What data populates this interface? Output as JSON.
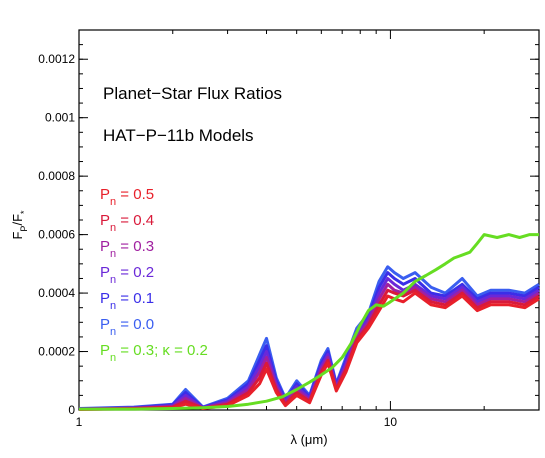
{
  "chart_data": {
    "type": "line",
    "xscale": "log",
    "xlim": [
      1,
      30
    ],
    "ylim": [
      0,
      0.0013
    ],
    "x_ticks": [
      {
        "value": 1,
        "label": "1"
      },
      {
        "value": 10,
        "label": "10"
      }
    ],
    "y_ticks": [
      {
        "value": 0,
        "label": "0"
      },
      {
        "value": 0.0002,
        "label": "0.0002"
      },
      {
        "value": 0.0004,
        "label": "0.0004"
      },
      {
        "value": 0.0006,
        "label": "0.0006"
      },
      {
        "value": 0.0008,
        "label": "0.0008"
      },
      {
        "value": 0.001,
        "label": "0.001"
      },
      {
        "value": 0.0012,
        "label": "0.0012"
      }
    ],
    "xlabel": "λ (μm)",
    "ylabel_main": "F",
    "ylabel_sub1": "P",
    "ylabel_mid": "/F",
    "ylabel_sub2": "*",
    "annotations": [
      "Planet−Star Flux Ratios",
      "HAT−P−11b Models"
    ],
    "legend": [
      {
        "main": "P",
        "sub": "n",
        "rest": " = 0.5",
        "color": "#e8202a"
      },
      {
        "main": "P",
        "sub": "n",
        "rest": " = 0.4",
        "color": "#d91a3a"
      },
      {
        "main": "P",
        "sub": "n",
        "rest": " = 0.3",
        "color": "#a020a0"
      },
      {
        "main": "P",
        "sub": "n",
        "rest": " = 0.2",
        "color": "#6a28d8"
      },
      {
        "main": "P",
        "sub": "n",
        "rest": " = 0.1",
        "color": "#3a2ee8"
      },
      {
        "main": "P",
        "sub": "n",
        "rest": " = 0.0",
        "color": "#3a5ef0"
      },
      {
        "main": "P",
        "sub": "n",
        "rest": " = 0.3; κ = 0.2",
        "color": "#66dd22"
      }
    ],
    "series": [
      {
        "color": "#3a5ef0",
        "x": [
          1.0,
          1.5,
          2.0,
          2.2,
          2.5,
          3.0,
          3.5,
          3.8,
          4.0,
          4.3,
          4.6,
          5.0,
          5.5,
          6.0,
          6.3,
          6.7,
          7.2,
          7.8,
          8.5,
          9.2,
          9.8,
          10.3,
          11.0,
          12.0,
          13.5,
          15.0,
          17.0,
          19.0,
          21.0,
          24.0,
          27.0,
          30.0
        ],
        "y": [
          5e-06,
          1e-05,
          2e-05,
          7e-05,
          1e-05,
          4e-05,
          0.0001,
          0.00019,
          0.000245,
          0.00011,
          4e-05,
          0.0001,
          5e-05,
          0.00017,
          0.00021,
          9e-05,
          0.00018,
          0.00028,
          0.00033,
          0.00044,
          0.00049,
          0.00047,
          0.00045,
          0.00047,
          0.00042,
          0.0004,
          0.00045,
          0.00039,
          0.00041,
          0.00041,
          0.0004,
          0.00043
        ]
      },
      {
        "color": "#3a2ee8",
        "x": [
          1.0,
          1.5,
          2.0,
          2.2,
          2.5,
          3.0,
          3.5,
          3.8,
          4.0,
          4.3,
          4.6,
          5.0,
          5.5,
          6.0,
          6.3,
          6.7,
          7.2,
          7.8,
          8.5,
          9.2,
          9.8,
          10.3,
          11.0,
          12.0,
          13.5,
          15.0,
          17.0,
          19.0,
          21.0,
          24.0,
          27.0,
          30.0
        ],
        "y": [
          4e-06,
          8e-06,
          1.8e-05,
          6e-05,
          9e-06,
          3.5e-05,
          9e-05,
          0.00017,
          0.00022,
          0.0001,
          3.5e-05,
          9e-05,
          4.5e-05,
          0.00016,
          0.0002,
          8.5e-05,
          0.00017,
          0.00027,
          0.00032,
          0.00042,
          0.00047,
          0.00045,
          0.00043,
          0.00045,
          0.0004,
          0.00039,
          0.00043,
          0.00038,
          0.0004,
          0.0004,
          0.00039,
          0.00042
        ]
      },
      {
        "color": "#6a28d8",
        "x": [
          1.0,
          1.5,
          2.0,
          2.2,
          2.5,
          3.0,
          3.5,
          3.8,
          4.0,
          4.3,
          4.6,
          5.0,
          5.5,
          6.0,
          6.3,
          6.7,
          7.2,
          7.8,
          8.5,
          9.2,
          9.8,
          10.3,
          11.0,
          12.0,
          13.5,
          15.0,
          17.0,
          19.0,
          21.0,
          24.0,
          27.0,
          30.0
        ],
        "y": [
          3e-06,
          7e-06,
          1.5e-05,
          5e-05,
          8e-06,
          3e-05,
          8e-05,
          0.00015,
          0.0002,
          9e-05,
          3e-05,
          8e-05,
          4e-05,
          0.00015,
          0.00019,
          8e-05,
          0.00016,
          0.00026,
          0.00031,
          0.0004,
          0.00045,
          0.00043,
          0.00041,
          0.00043,
          0.00039,
          0.00038,
          0.00042,
          0.00037,
          0.00039,
          0.00039,
          0.00038,
          0.00041
        ]
      },
      {
        "color": "#a020a0",
        "x": [
          1.0,
          1.5,
          2.0,
          2.2,
          2.5,
          3.0,
          3.5,
          3.8,
          4.0,
          4.3,
          4.6,
          5.0,
          5.5,
          6.0,
          6.3,
          6.7,
          7.2,
          7.8,
          8.5,
          9.2,
          9.8,
          10.3,
          11.0,
          12.0,
          13.5,
          15.0,
          17.0,
          19.0,
          21.0,
          24.0,
          27.0,
          30.0
        ],
        "y": [
          3e-06,
          6e-06,
          1.2e-05,
          4e-05,
          7e-06,
          2.5e-05,
          7e-05,
          0.00013,
          0.00018,
          8e-05,
          2.5e-05,
          7e-05,
          3.5e-05,
          0.00014,
          0.00018,
          7.5e-05,
          0.00015,
          0.00025,
          0.0003,
          0.00038,
          0.00043,
          0.00041,
          0.0004,
          0.00042,
          0.00038,
          0.00037,
          0.00041,
          0.00036,
          0.00038,
          0.00038,
          0.00037,
          0.0004
        ]
      },
      {
        "color": "#d91a3a",
        "x": [
          1.0,
          1.5,
          2.0,
          2.2,
          2.5,
          3.0,
          3.5,
          3.8,
          4.0,
          4.3,
          4.6,
          5.0,
          5.5,
          6.0,
          6.3,
          6.7,
          7.2,
          7.8,
          8.5,
          9.2,
          9.8,
          10.3,
          11.0,
          12.0,
          13.5,
          15.0,
          17.0,
          19.0,
          21.0,
          24.0,
          27.0,
          30.0
        ],
        "y": [
          2e-06,
          5e-06,
          1e-05,
          3e-05,
          6e-06,
          2e-05,
          6e-05,
          0.00011,
          0.00016,
          7e-05,
          2e-05,
          6e-05,
          3e-05,
          0.00013,
          0.00017,
          7e-05,
          0.00014,
          0.00024,
          0.00029,
          0.00036,
          0.00041,
          0.0004,
          0.00039,
          0.00041,
          0.00037,
          0.00036,
          0.0004,
          0.00035,
          0.00037,
          0.00037,
          0.00036,
          0.00039
        ]
      },
      {
        "color": "#e8202a",
        "x": [
          1.0,
          1.5,
          2.0,
          2.2,
          2.5,
          3.0,
          3.5,
          3.8,
          4.0,
          4.3,
          4.6,
          5.0,
          5.5,
          6.0,
          6.3,
          6.7,
          7.2,
          7.8,
          8.5,
          9.2,
          9.8,
          10.3,
          11.0,
          12.0,
          13.5,
          15.0,
          17.0,
          19.0,
          21.0,
          24.0,
          27.0,
          30.0
        ],
        "y": [
          2e-06,
          4e-06,
          8e-06,
          2e-05,
          5e-06,
          1.5e-05,
          5e-05,
          9e-05,
          0.00014,
          6e-05,
          1.5e-05,
          5e-05,
          2.5e-05,
          0.00012,
          0.00016,
          6.5e-05,
          0.00013,
          0.00023,
          0.00028,
          0.00034,
          0.00039,
          0.00038,
          0.00037,
          0.0004,
          0.00036,
          0.00035,
          0.00039,
          0.00034,
          0.00036,
          0.00036,
          0.00035,
          0.00038
        ]
      },
      {
        "color": "#66dd22",
        "x": [
          1.0,
          1.5,
          2.0,
          2.5,
          3.0,
          3.5,
          4.0,
          4.5,
          5.0,
          5.5,
          6.0,
          6.5,
          7.0,
          7.5,
          8.0,
          8.5,
          9.0,
          9.5,
          10.0,
          11.0,
          12.0,
          13.0,
          14.0,
          15.0,
          16.0,
          17.0,
          18.0,
          19.0,
          20.0,
          22.0,
          24.0,
          26.0,
          28.0,
          30.0
        ],
        "y": [
          3e-06,
          3e-06,
          5e-06,
          8e-06,
          1.2e-05,
          2e-05,
          3e-05,
          4.5e-05,
          7e-05,
          9.5e-05,
          0.00012,
          0.000145,
          0.00018,
          0.00023,
          0.00029,
          0.00034,
          0.00036,
          0.000355,
          0.00037,
          0.0004,
          0.00044,
          0.00046,
          0.00048,
          0.0005,
          0.00052,
          0.00053,
          0.00054,
          0.00057,
          0.0006,
          0.00059,
          0.0006,
          0.00059,
          0.0006,
          0.0006
        ]
      }
    ]
  }
}
